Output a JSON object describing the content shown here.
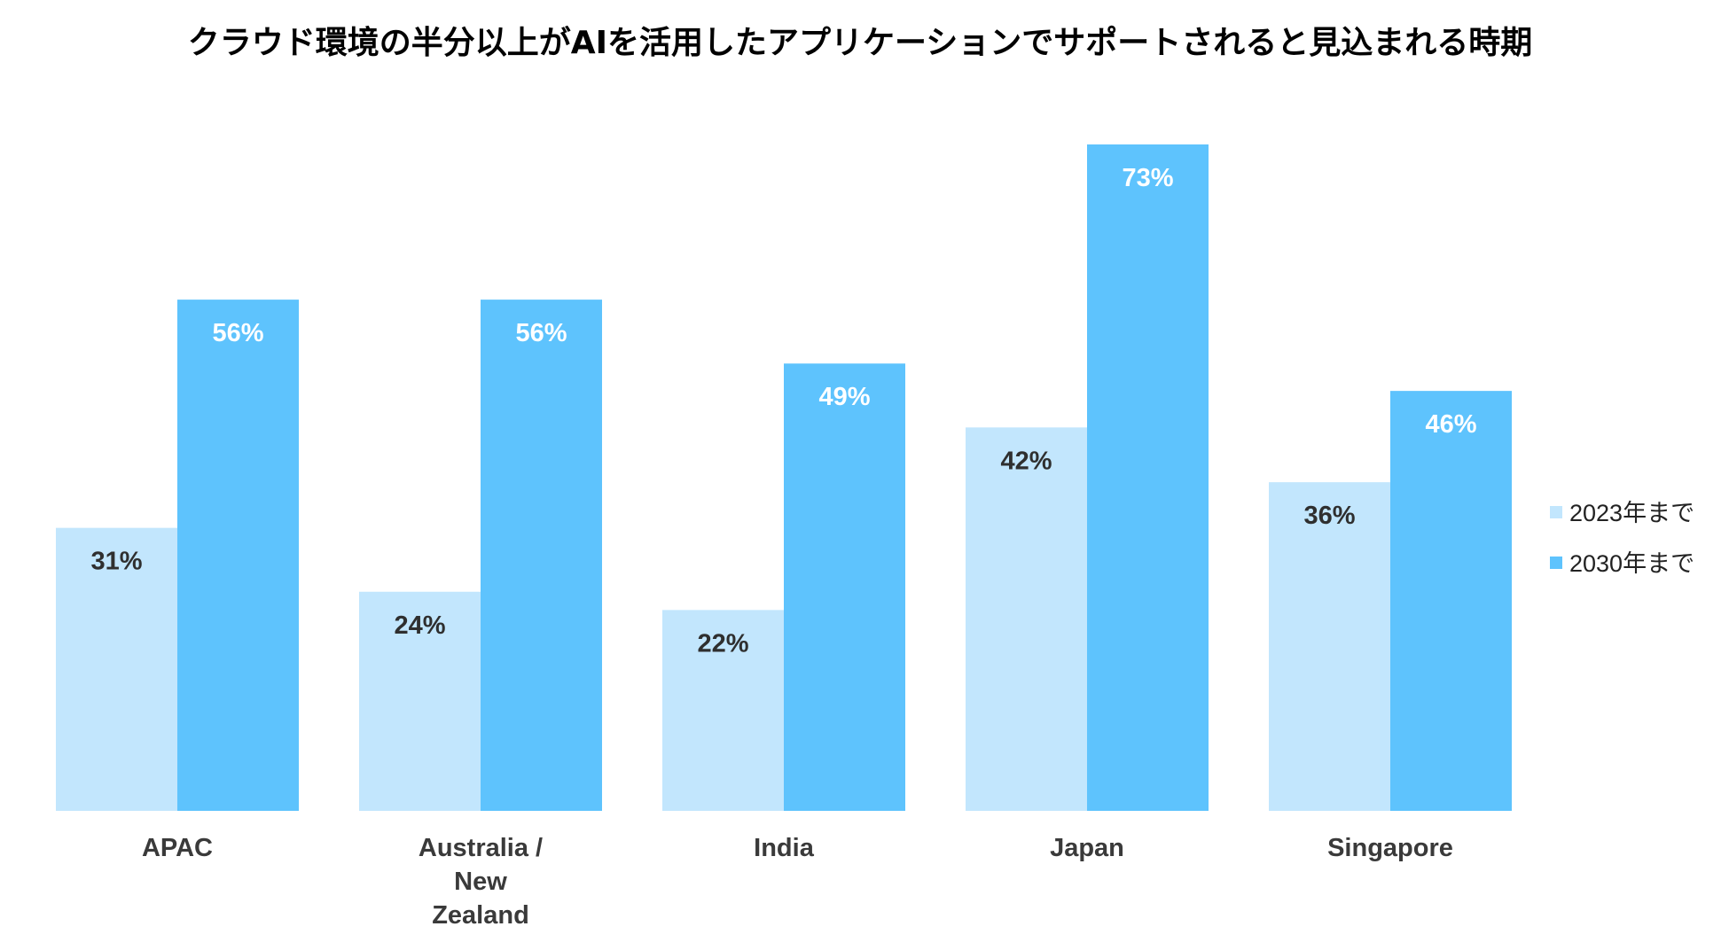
{
  "chart_data": {
    "type": "bar",
    "title": "クラウド環境の半分以上がAIを活用したアプリケーションでサポートされると見込まれる時期",
    "categories": [
      "APAC",
      "Australia / New Zealand",
      "India",
      "Japan",
      "Singapore"
    ],
    "category_lines": [
      [
        "APAC"
      ],
      [
        "Australia /",
        "New",
        "Zealand"
      ],
      [
        "India"
      ],
      [
        "Japan"
      ],
      [
        "Singapore"
      ]
    ],
    "series": [
      {
        "name": "2023年まで",
        "values": [
          31,
          24,
          22,
          42,
          36
        ],
        "labels": [
          "31%",
          "24%",
          "22%",
          "42%",
          "36%"
        ],
        "color": "#c2e6fd",
        "label_color": "#2f2f2f"
      },
      {
        "name": "2030年まで",
        "values": [
          56,
          56,
          49,
          73,
          46
        ],
        "labels": [
          "56%",
          "56%",
          "49%",
          "73%",
          "46%"
        ],
        "color": "#5ec3fd",
        "label_color": "#ffffff"
      }
    ],
    "ylim": [
      0,
      73
    ],
    "grid": false,
    "legend_position": "right",
    "xlabel": "",
    "ylabel": ""
  }
}
